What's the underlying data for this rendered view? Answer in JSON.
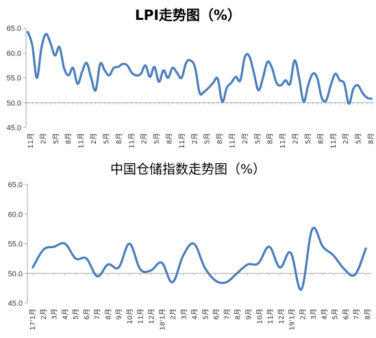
{
  "charts": [
    {
      "id": "lpi",
      "title": "LPI走势图（%）"
    },
    {
      "id": "storage",
      "title": "中国仓储指数走势图（%）"
    }
  ],
  "chart_data": [
    {
      "type": "line",
      "title": "LPI走势图（%）",
      "xlabel": "",
      "ylabel": "",
      "ylim": [
        45.0,
        65.0
      ],
      "yticks": [
        "45.0",
        "50.0",
        "55.0",
        "60.0",
        "65.0"
      ],
      "grid": false,
      "line_color": "#4a7ebb",
      "x_tick_labels": [
        "11月",
        "2月",
        "5月",
        "8月",
        "11月",
        "2月",
        "5月",
        "8月",
        "11月",
        "2月",
        "5月",
        "8月",
        "11月",
        "2月",
        "5月",
        "8月",
        "11月",
        "2月",
        "5月",
        "8月",
        "11月",
        "2月",
        "5月",
        "8月",
        "11月",
        "2月",
        "5月",
        "8月"
      ],
      "values": [
        64.2,
        61.5,
        55.0,
        61.0,
        63.8,
        62.0,
        59.5,
        61.2,
        57.0,
        55.5,
        57.0,
        53.8,
        56.2,
        58.0,
        55.0,
        52.5,
        57.8,
        56.5,
        55.5,
        57.0,
        57.2,
        57.8,
        57.5,
        56.0,
        55.5,
        55.8,
        57.5,
        55.2,
        57.2,
        54.2,
        56.5,
        55.0,
        57.0,
        56.0,
        55.0,
        58.0,
        58.5,
        57.0,
        52.0,
        52.2,
        53.0,
        54.0,
        54.8,
        50.2,
        53.0,
        54.0,
        55.2,
        54.5,
        59.2,
        59.3,
        56.0,
        52.5,
        55.0,
        58.2,
        57.0,
        54.0,
        53.5,
        54.5,
        53.8,
        58.5,
        55.0,
        50.2,
        53.5,
        55.8,
        55.0,
        51.0,
        50.5,
        53.5,
        55.8,
        54.5,
        53.8,
        49.8,
        52.8,
        53.5,
        52.0,
        51.0,
        50.8
      ]
    },
    {
      "type": "line",
      "title": "中国仓储指数走势图（%）",
      "xlabel": "",
      "ylabel": "",
      "ylim": [
        45.0,
        65.0
      ],
      "yticks": [
        "45.0",
        "50.0",
        "55.0",
        "60.0",
        "65.0"
      ],
      "grid": false,
      "line_color": "#4a7ebb",
      "x_tick_labels": [
        "17'1月",
        "2月",
        "3月",
        "4月",
        "5月",
        "6月",
        "7月",
        "8月",
        "9月",
        "10月",
        "11月",
        "12月",
        "18'1月",
        "2月",
        "3月",
        "4月",
        "5月",
        "6月",
        "7月",
        "8月",
        "9月",
        "10月",
        "11月",
        "12月",
        "19'1月",
        "2月",
        "3月",
        "4月",
        "5月",
        "6月",
        "7月",
        "8月"
      ],
      "values": [
        51.0,
        54.0,
        54.5,
        55.0,
        52.5,
        52.5,
        49.5,
        51.5,
        51.0,
        55.0,
        50.7,
        50.5,
        51.8,
        48.5,
        53.0,
        55.0,
        51.0,
        48.8,
        48.5,
        50.0,
        51.5,
        51.7,
        54.5,
        51.0,
        53.5,
        47.3,
        57.4,
        54.5,
        53.0,
        50.7,
        49.8,
        54.2
      ]
    }
  ]
}
